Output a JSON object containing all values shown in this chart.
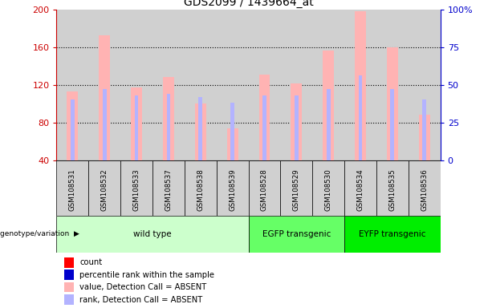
{
  "title": "GDS2099 / 1439664_at",
  "samples": [
    "GSM108531",
    "GSM108532",
    "GSM108533",
    "GSM108537",
    "GSM108538",
    "GSM108539",
    "GSM108528",
    "GSM108529",
    "GSM108530",
    "GSM108534",
    "GSM108535",
    "GSM108536"
  ],
  "bar_values": [
    113,
    172,
    117,
    128,
    100,
    74,
    131,
    121,
    156,
    198,
    160,
    88
  ],
  "rank_values": [
    40,
    47,
    43,
    44,
    42,
    38,
    43,
    43,
    47,
    56,
    47,
    40
  ],
  "bar_color": "#ffb3b3",
  "rank_bar_color": "#b3b3ff",
  "ylim_left": [
    40,
    200
  ],
  "ylim_right": [
    0,
    100
  ],
  "yticks_left": [
    40,
    80,
    120,
    160,
    200
  ],
  "yticks_right": [
    0,
    25,
    50,
    75,
    100
  ],
  "ytick_labels_right": [
    "0",
    "25",
    "50",
    "75",
    "100%"
  ],
  "ytick_labels_left": [
    "40",
    "80",
    "120",
    "160",
    "200"
  ],
  "groups": [
    {
      "label": "wild type",
      "start": 0,
      "end": 6,
      "color": "#ccffcc"
    },
    {
      "label": "EGFP transgenic",
      "start": 6,
      "end": 9,
      "color": "#66ff66"
    },
    {
      "label": "EYFP transgenic",
      "start": 9,
      "end": 12,
      "color": "#00ee00"
    }
  ],
  "group_label_prefix": "genotype/variation",
  "legend_items": [
    {
      "label": "count",
      "color": "#ff0000"
    },
    {
      "label": "percentile rank within the sample",
      "color": "#0000cc"
    },
    {
      "label": "value, Detection Call = ABSENT",
      "color": "#ffb3b3"
    },
    {
      "label": "rank, Detection Call = ABSENT",
      "color": "#b3b3ff"
    }
  ],
  "bar_width": 0.35,
  "rank_bar_width": 0.12,
  "grid_color": "#000000",
  "title_color": "#000000",
  "left_axis_color": "#cc0000",
  "right_axis_color": "#0000cc",
  "col_bg_color": "#d0d0d0"
}
